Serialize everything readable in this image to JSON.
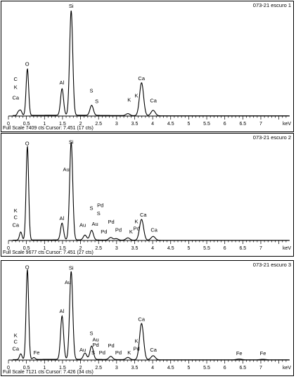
{
  "chart_data": [
    {
      "type": "line",
      "title": "073-21 escuro 1",
      "footer": "Full Scale 7409 cts Cursor: 7.451  (17 cts)",
      "xlabel": "keV",
      "xlim": [
        0,
        7.8
      ],
      "ylim": [
        0,
        7409
      ],
      "x_ticks": [
        "0",
        "0.5",
        "1",
        "1.5",
        "2",
        "2.5",
        "3",
        "3.5",
        "4",
        "4.5",
        "5",
        "5.5",
        "6",
        "6.5",
        "7"
      ],
      "peaks": [
        {
          "element": "C",
          "energy": 0.277,
          "counts": 250
        },
        {
          "element": "Ca",
          "energy": 0.341,
          "counts": 330
        },
        {
          "element": "O",
          "energy": 0.525,
          "counts": 3250
        },
        {
          "element": "Al",
          "energy": 1.487,
          "counts": 1850
        },
        {
          "element": "Si",
          "energy": 1.74,
          "counts": 7300
        },
        {
          "element": "S",
          "energy": 2.308,
          "counts": 700
        },
        {
          "element": "K",
          "energy": 3.313,
          "counts": 140
        },
        {
          "element": "Ca",
          "energy": 3.692,
          "counts": 2300
        },
        {
          "element": "Ca",
          "energy": 4.013,
          "counts": 380
        }
      ],
      "annotations": [
        {
          "text": "C",
          "x": 0.2,
          "y": 2450
        },
        {
          "text": "K",
          "x": 0.2,
          "y": 1900
        },
        {
          "text": "Ca",
          "x": 0.2,
          "y": 1150
        },
        {
          "text": "O",
          "x": 0.52,
          "y": 3500
        },
        {
          "text": "Al",
          "x": 1.48,
          "y": 2200
        },
        {
          "text": "Si",
          "x": 1.74,
          "y": 7550
        },
        {
          "text": "S",
          "x": 2.3,
          "y": 1650
        },
        {
          "text": "S",
          "x": 2.45,
          "y": 900
        },
        {
          "text": "K",
          "x": 3.35,
          "y": 1000
        },
        {
          "text": "K",
          "x": 3.55,
          "y": 1300
        },
        {
          "text": "Ca",
          "x": 3.69,
          "y": 2500
        },
        {
          "text": "Ca",
          "x": 4.02,
          "y": 950
        }
      ]
    },
    {
      "type": "line",
      "title": "073-21 escuro 2",
      "footer": "Full Scale 9677 cts Cursor: 7.451  (27 cts)",
      "xlabel": "keV",
      "xlim": [
        0,
        7.8
      ],
      "ylim": [
        0,
        9677
      ],
      "x_ticks": [
        "0",
        "0.5",
        "1",
        "1.5",
        "2",
        "2.5",
        "3",
        "3.5",
        "4",
        "4.5",
        "5",
        "5.5",
        "6",
        "6.5",
        "7"
      ],
      "peaks": [
        {
          "element": "Ca",
          "energy": 0.341,
          "counts": 800
        },
        {
          "element": "O",
          "energy": 0.525,
          "counts": 9200
        },
        {
          "element": "Al",
          "energy": 1.487,
          "counts": 1650
        },
        {
          "element": "Si",
          "energy": 1.74,
          "counts": 9600
        },
        {
          "element": "Au",
          "energy": 2.123,
          "counts": 480
        },
        {
          "element": "S",
          "energy": 2.308,
          "counts": 950
        },
        {
          "element": "Pd",
          "energy": 2.838,
          "counts": 260
        },
        {
          "element": "Pd",
          "energy": 2.99,
          "counts": 150
        },
        {
          "element": "K",
          "energy": 3.313,
          "counts": 230
        },
        {
          "element": "Ca",
          "energy": 3.692,
          "counts": 2050
        },
        {
          "element": "Ca",
          "energy": 4.013,
          "counts": 380
        }
      ],
      "annotations": [
        {
          "text": "K",
          "x": 0.2,
          "y": 2750
        },
        {
          "text": "C",
          "x": 0.2,
          "y": 2100
        },
        {
          "text": "Ca",
          "x": 0.2,
          "y": 1350
        },
        {
          "text": "O",
          "x": 0.52,
          "y": 9350
        },
        {
          "text": "Si",
          "x": 1.74,
          "y": 9500
        },
        {
          "text": "Au",
          "x": 1.6,
          "y": 6800
        },
        {
          "text": "Al",
          "x": 1.48,
          "y": 2000
        },
        {
          "text": "S",
          "x": 2.3,
          "y": 3000
        },
        {
          "text": "Pd",
          "x": 2.55,
          "y": 3300
        },
        {
          "text": "S",
          "x": 2.5,
          "y": 2500
        },
        {
          "text": "Au",
          "x": 2.06,
          "y": 1350
        },
        {
          "text": "Au",
          "x": 2.4,
          "y": 1450
        },
        {
          "text": "Pd",
          "x": 2.85,
          "y": 1650
        },
        {
          "text": "Pd",
          "x": 2.65,
          "y": 700
        },
        {
          "text": "Pd",
          "x": 3.05,
          "y": 850
        },
        {
          "text": "K",
          "x": 3.4,
          "y": 700
        },
        {
          "text": "Pd",
          "x": 3.55,
          "y": 1000
        },
        {
          "text": "K",
          "x": 3.55,
          "y": 1700
        },
        {
          "text": "Ca",
          "x": 3.74,
          "y": 2350
        },
        {
          "text": "Ca",
          "x": 4.04,
          "y": 850
        }
      ]
    },
    {
      "type": "line",
      "title": "073-21 escuro 3",
      "footer": "Full Scale 7121 cts Cursor: 7.426  (34 cts)",
      "xlabel": "keV",
      "xlim": [
        0,
        7.8
      ],
      "ylim": [
        0,
        7121
      ],
      "x_ticks": [
        "0",
        "0.5",
        "1",
        "1.5",
        "2",
        "2.5",
        "3",
        "3.5",
        "4",
        "4.5",
        "5",
        "5.5",
        "6",
        "6.5",
        "7"
      ],
      "peaks": [
        {
          "element": "Ca",
          "energy": 0.341,
          "counts": 450
        },
        {
          "element": "O",
          "energy": 0.525,
          "counts": 7050
        },
        {
          "element": "Fe",
          "energy": 0.705,
          "counts": 150
        },
        {
          "element": "Al",
          "energy": 1.487,
          "counts": 3400
        },
        {
          "element": "Si",
          "energy": 1.74,
          "counts": 6900
        },
        {
          "element": "Au",
          "energy": 2.123,
          "counts": 500
        },
        {
          "element": "S",
          "energy": 2.308,
          "counts": 1050
        },
        {
          "element": "Pd",
          "energy": 2.838,
          "counts": 250
        },
        {
          "element": "K",
          "energy": 3.313,
          "counts": 180
        },
        {
          "element": "Ca",
          "energy": 3.692,
          "counts": 2850
        },
        {
          "element": "Ca",
          "energy": 4.013,
          "counts": 320
        },
        {
          "element": "Fe",
          "energy": 6.4,
          "counts": 60
        },
        {
          "element": "Fe",
          "energy": 7.058,
          "counts": 40
        }
      ],
      "annotations": [
        {
          "text": "K",
          "x": 0.2,
          "y": 1800
        },
        {
          "text": "C",
          "x": 0.2,
          "y": 1300
        },
        {
          "text": "Ca",
          "x": 0.2,
          "y": 750
        },
        {
          "text": "Fe",
          "x": 0.78,
          "y": 450
        },
        {
          "text": "O",
          "x": 0.52,
          "y": 7150
        },
        {
          "text": "Si",
          "x": 1.74,
          "y": 7100
        },
        {
          "text": "Au",
          "x": 1.65,
          "y": 5950
        },
        {
          "text": "Al",
          "x": 1.48,
          "y": 3700
        },
        {
          "text": "S",
          "x": 2.3,
          "y": 1950
        },
        {
          "text": "Au",
          "x": 2.42,
          "y": 1450
        },
        {
          "text": "Pd",
          "x": 2.42,
          "y": 1050
        },
        {
          "text": "Au",
          "x": 2.06,
          "y": 650
        },
        {
          "text": "S",
          "x": 2.35,
          "y": 450
        },
        {
          "text": "Pd",
          "x": 2.6,
          "y": 450
        },
        {
          "text": "Pd",
          "x": 2.85,
          "y": 1000
        },
        {
          "text": "Pd",
          "x": 3.05,
          "y": 450
        },
        {
          "text": "K",
          "x": 3.35,
          "y": 450
        },
        {
          "text": "Pd",
          "x": 3.55,
          "y": 750
        },
        {
          "text": "K",
          "x": 3.55,
          "y": 1350
        },
        {
          "text": "Ca",
          "x": 3.69,
          "y": 3050
        },
        {
          "text": "Ca",
          "x": 4.02,
          "y": 650
        },
        {
          "text": "Fe",
          "x": 6.4,
          "y": 400
        },
        {
          "text": "Fe",
          "x": 7.06,
          "y": 400
        }
      ]
    }
  ]
}
